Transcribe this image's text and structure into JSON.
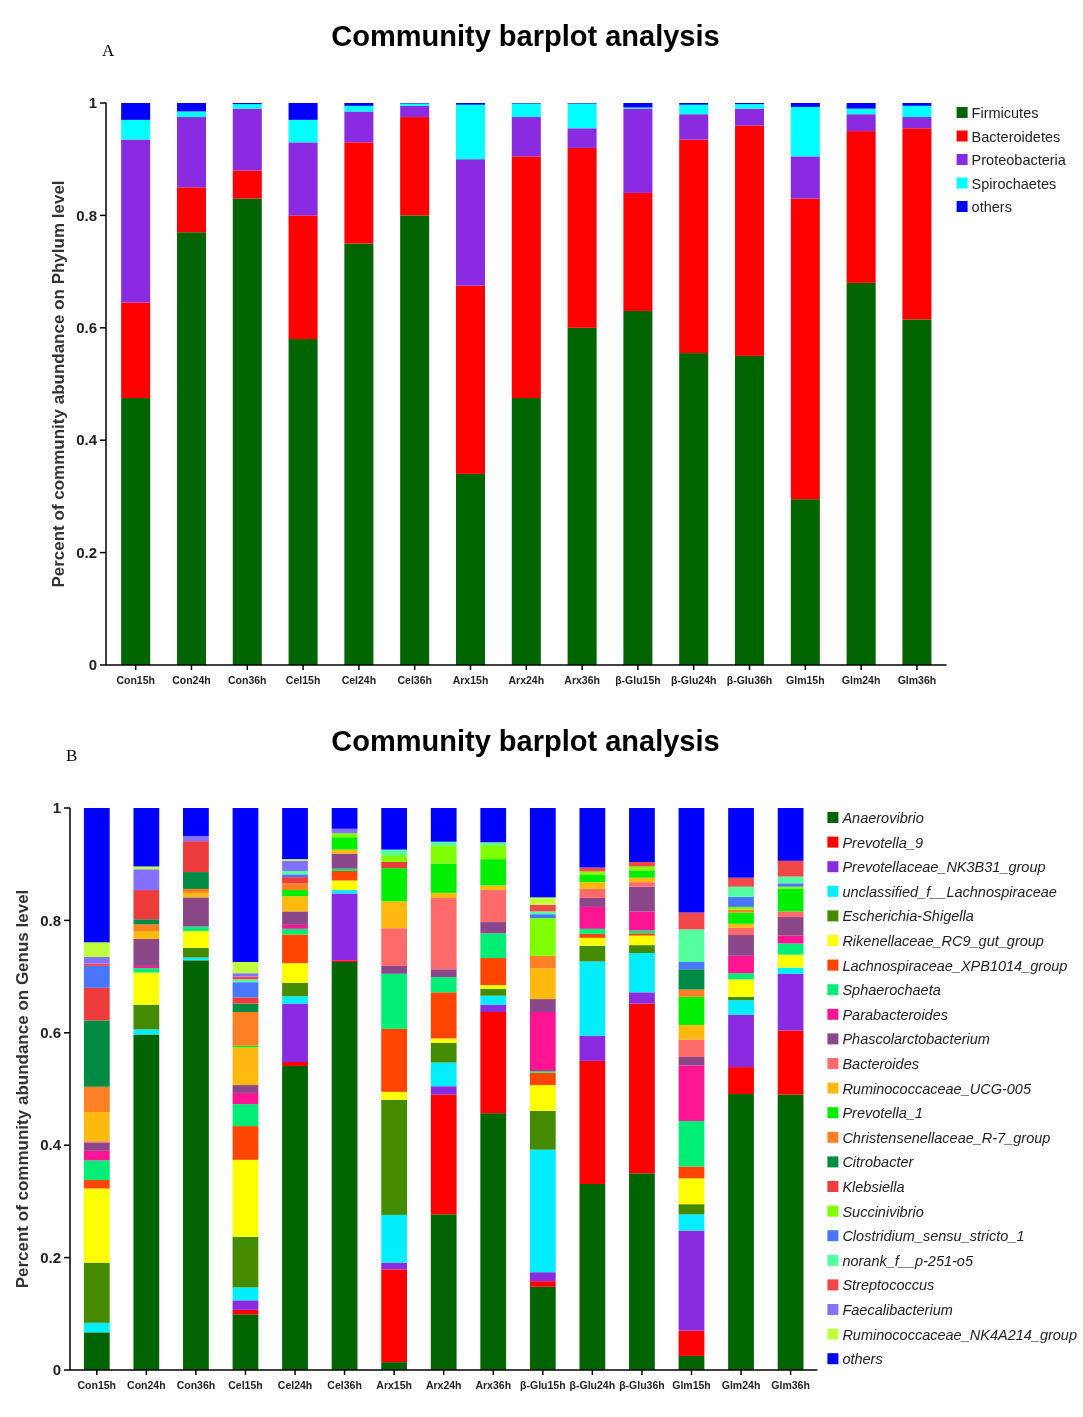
{
  "chart_data": [
    {
      "type": "bar",
      "stacked": true,
      "title": "Community barplot analysis",
      "ylabel": "Percent of community abundance on Phylum level",
      "annotations": [
        "A"
      ],
      "legend": "right",
      "ylim": [
        0,
        1
      ],
      "yticks": [
        0,
        0.2,
        0.4,
        0.6,
        0.8,
        1
      ],
      "categories": [
        "Con15h",
        "Con24h",
        "Con36h",
        "Cel15h",
        "Cel24h",
        "Cel36h",
        "Arx15h",
        "Arx24h",
        "Arx36h",
        "β-Glu15h",
        "β-Glu24h",
        "β-Glu36h",
        "Glm15h",
        "Glm24h",
        "Glm36h"
      ],
      "series": [
        {
          "name": "Firmicutes",
          "color": "#006400",
          "values": [
            0.475,
            0.77,
            0.83,
            0.58,
            0.75,
            0.8,
            0.34,
            0.475,
            0.6,
            0.63,
            0.555,
            0.55,
            0.295,
            0.68,
            0.615
          ]
        },
        {
          "name": "Bacteroidetes",
          "color": "#ff0000",
          "values": [
            0.17,
            0.08,
            0.05,
            0.22,
            0.18,
            0.175,
            0.335,
            0.43,
            0.32,
            0.21,
            0.38,
            0.41,
            0.535,
            0.27,
            0.34
          ]
        },
        {
          "name": "Proteobacteria",
          "color": "#8a2be2",
          "values": [
            0.29,
            0.125,
            0.11,
            0.13,
            0.055,
            0.02,
            0.225,
            0.07,
            0.035,
            0.15,
            0.045,
            0.03,
            0.075,
            0.03,
            0.02
          ]
        },
        {
          "name": "Spirochaetes",
          "color": "#00ffff",
          "values": [
            0.035,
            0.01,
            0.008,
            0.04,
            0.01,
            0.004,
            0.097,
            0.024,
            0.044,
            0.002,
            0.017,
            0.008,
            0.088,
            0.01,
            0.02
          ]
        },
        {
          "name": "others",
          "color": "#0000ff",
          "values": [
            0.03,
            0.015,
            0.002,
            0.03,
            0.005,
            0.001,
            0.003,
            0.001,
            0.001,
            0.008,
            0.003,
            0.002,
            0.007,
            0.01,
            0.005
          ]
        }
      ]
    },
    {
      "type": "bar",
      "stacked": true,
      "title": "Community barplot analysis",
      "ylabel": "Percent of community abundance on Genus level",
      "annotations": [
        "B"
      ],
      "legend": "right",
      "ylim": [
        0,
        1
      ],
      "yticks": [
        0,
        0.2,
        0.4,
        0.6,
        0.8,
        1
      ],
      "categories": [
        "Con15h",
        "Con24h",
        "Con36h",
        "Cel15h",
        "Cel24h",
        "Cel36h",
        "Arx15h",
        "Arx24h",
        "Arx36h",
        "β-Glu15h",
        "β-Glu24h",
        "β-Glu36h",
        "Glm15h",
        "Glm24h",
        "Glm36h"
      ],
      "series": [
        {
          "name": "Anaerovibrio",
          "color": "#006400",
          "values": [
            0.067,
            0.597,
            0.729,
            0.099,
            0.541,
            0.726,
            0.014,
            0.277,
            0.457,
            0.148,
            0.331,
            0.35,
            0.025,
            0.491,
            0.49
          ]
        },
        {
          "name": "Prevotella_9",
          "color": "#ff0000",
          "values": [
            0,
            0,
            0,
            0.008,
            0.007,
            0.003,
            0.165,
            0.213,
            0.18,
            0.01,
            0.219,
            0.302,
            0.045,
            0.048,
            0.114
          ]
        },
        {
          "name": "Prevotellaceae_NK3B31_group",
          "color": "#8a2be2",
          "values": [
            0,
            0,
            0,
            0.017,
            0.104,
            0.119,
            0.012,
            0.015,
            0.013,
            0.016,
            0.045,
            0.02,
            0.178,
            0.093,
            0.101
          ]
        },
        {
          "name": "unclassified_f__Lachnospiraceae",
          "color": "#00eeff",
          "values": [
            0.017,
            0.009,
            0.005,
            0.023,
            0.013,
            0.006,
            0.085,
            0.042,
            0.016,
            0.218,
            0.132,
            0.07,
            0.029,
            0.026,
            0.011
          ]
        },
        {
          "name": "Escherichia-Shigella",
          "color": "#458b00",
          "values": [
            0.107,
            0.044,
            0.017,
            0.09,
            0.024,
            0,
            0.205,
            0.035,
            0.012,
            0.069,
            0.028,
            0.014,
            0.018,
            0.006,
            0
          ]
        },
        {
          "name": "Rikenellaceae_RC9_gut_group",
          "color": "#ffff00",
          "values": [
            0.132,
            0.057,
            0.03,
            0.137,
            0.035,
            0.017,
            0.014,
            0.008,
            0.007,
            0.046,
            0.014,
            0.017,
            0.046,
            0.031,
            0.023
          ]
        },
        {
          "name": "Lachnospiraceae_XPB1014_group",
          "color": "#ff4500",
          "values": [
            0.015,
            0,
            0,
            0.06,
            0.051,
            0.017,
            0.112,
            0.082,
            0.048,
            0.022,
            0.007,
            0.004,
            0.021,
            0,
            0
          ]
        },
        {
          "name": "Sphaerochaeta",
          "color": "#00ee76",
          "values": [
            0.035,
            0.008,
            0.008,
            0.039,
            0.01,
            0.004,
            0.098,
            0.027,
            0.044,
            0.003,
            0.009,
            0.005,
            0.081,
            0.011,
            0.02
          ]
        },
        {
          "name": "Parabacteroides",
          "color": "#ff1493",
          "values": [
            0.017,
            0.004,
            0,
            0.02,
            0.007,
            0,
            0,
            0,
            0,
            0.105,
            0.039,
            0.034,
            0.099,
            0.031,
            0.014
          ]
        },
        {
          "name": "Phascolarctobacterium",
          "color": "#8b4789",
          "values": [
            0.015,
            0.048,
            0.052,
            0.014,
            0.024,
            0.027,
            0.014,
            0.014,
            0.02,
            0.023,
            0.016,
            0.044,
            0.015,
            0.037,
            0.033
          ]
        },
        {
          "name": "Bacteroides",
          "color": "#ff6a6a",
          "values": [
            0.002,
            0,
            0,
            0,
            0,
            0,
            0.067,
            0.127,
            0.057,
            0,
            0.016,
            0.008,
            0.031,
            0.013,
            0.01
          ]
        },
        {
          "name": "Ruminococcaceae_UCG-005",
          "color": "#ffb90f",
          "values": [
            0.052,
            0.014,
            0.008,
            0.067,
            0.027,
            0.007,
            0.048,
            0.009,
            0.008,
            0.055,
            0.012,
            0.008,
            0.026,
            0.007,
            0
          ]
        },
        {
          "name": "Prevotella_1",
          "color": "#00ee00",
          "values": [
            0,
            0,
            0,
            0.003,
            0.011,
            0.022,
            0.059,
            0.052,
            0.047,
            0,
            0.013,
            0.013,
            0.05,
            0.02,
            0.04
          ]
        },
        {
          "name": "Christensenellaceae_R-7_group",
          "color": "#ff7f24",
          "values": [
            0.045,
            0.012,
            0.007,
            0.06,
            0.012,
            0,
            0,
            0,
            0,
            0.022,
            0,
            0,
            0.013,
            0.005,
            0
          ]
        },
        {
          "name": "Citrobacter",
          "color": "#008b45",
          "values": [
            0.118,
            0.009,
            0.03,
            0.015,
            0,
            0,
            0,
            0,
            0,
            0,
            0,
            0,
            0.036,
            0,
            0
          ]
        },
        {
          "name": "Klebsiella",
          "color": "#ee3b3b",
          "values": [
            0.058,
            0.052,
            0.055,
            0.011,
            0.011,
            0,
            0.011,
            0,
            0,
            0,
            0,
            0,
            0,
            0,
            0
          ]
        },
        {
          "name": "Succinivibrio",
          "color": "#7fff00",
          "values": [
            0,
            0,
            0,
            0,
            0,
            0.007,
            0.012,
            0.032,
            0.025,
            0.067,
            0.006,
            0.007,
            0,
            0.005,
            0.004
          ]
        },
        {
          "name": "Clostridium_sensu_stricto_1",
          "color": "#4876ff",
          "values": [
            0.039,
            0,
            0,
            0.027,
            0.005,
            0,
            0,
            0,
            0,
            0.007,
            0,
            0,
            0.013,
            0.018,
            0.006
          ]
        },
        {
          "name": "norank_f__p-251-o5",
          "color": "#54ff9f",
          "values": [
            0,
            0,
            0,
            0.005,
            0.006,
            0,
            0.01,
            0.007,
            0.005,
            0.005,
            0,
            0,
            0.058,
            0.018,
            0.012
          ]
        },
        {
          "name": "Streptococcus",
          "color": "#f04848",
          "values": [
            0.004,
            0,
            0,
            0.005,
            0,
            0,
            0,
            0,
            0,
            0.012,
            0.007,
            0.008,
            0.03,
            0.016,
            0.028
          ]
        },
        {
          "name": "Faecalibacterium",
          "color": "#8470ff",
          "values": [
            0.012,
            0.037,
            0.009,
            0.006,
            0.018,
            0.008,
            0,
            0,
            0,
            0,
            0,
            0,
            0,
            0,
            0
          ]
        },
        {
          "name": "Ruminococcaceae_NK4A214_group",
          "color": "#c0ff3e",
          "values": [
            0.026,
            0.005,
            0,
            0.02,
            0.003,
            0,
            0,
            0,
            0,
            0.013,
            0,
            0,
            0,
            0,
            0
          ]
        },
        {
          "name": "others",
          "color": "#0000ff",
          "values": [
            0.239,
            0.104,
            0.05,
            0.274,
            0.091,
            0.037,
            0.074,
            0.06,
            0.061,
            0.159,
            0.106,
            0.096,
            0.186,
            0.124,
            0.094
          ]
        }
      ]
    }
  ]
}
